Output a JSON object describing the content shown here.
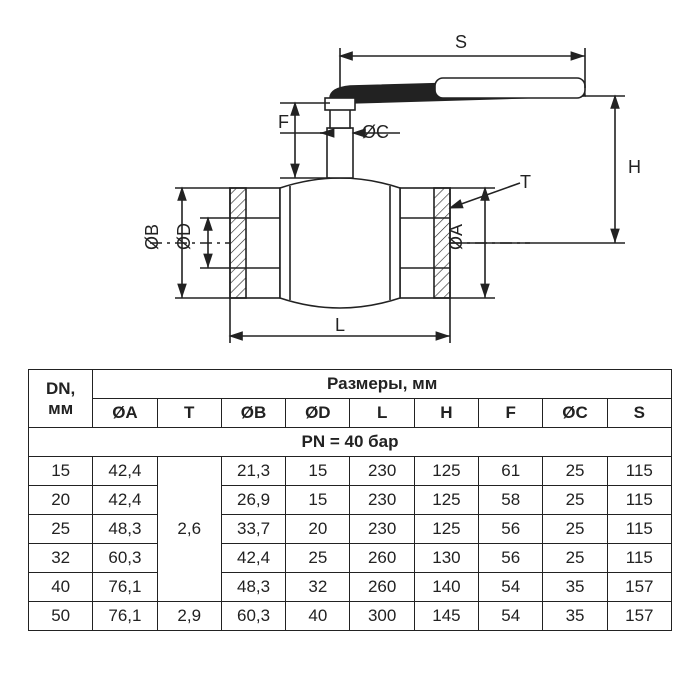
{
  "diagram": {
    "labels": {
      "S": "S",
      "H": "H",
      "F": "F",
      "diaC": "ØC",
      "diaA": "ØA",
      "diaB": "ØB",
      "diaD": "ØD",
      "T": "T",
      "L": "L"
    },
    "stroke": "#222",
    "stroke_width": 1.6,
    "hatch_stroke": "#222",
    "font_size": 18
  },
  "table": {
    "header_dn": "DN,",
    "header_dn2": "мм",
    "header_sizes": "Размеры, мм",
    "cols": [
      "ØA",
      "T",
      "ØB",
      "ØD",
      "L",
      "H",
      "F",
      "ØC",
      "S"
    ],
    "pn_row": "PN = 40 бар",
    "rows": [
      {
        "dn": "15",
        "A": "42,4",
        "T": "",
        "B": "21,3",
        "D": "15",
        "L": "230",
        "H": "125",
        "F": "61",
        "C": "25",
        "S": "115"
      },
      {
        "dn": "20",
        "A": "42,4",
        "T": "",
        "B": "26,9",
        "D": "15",
        "L": "230",
        "H": "125",
        "F": "58",
        "C": "25",
        "S": "115"
      },
      {
        "dn": "25",
        "A": "48,3",
        "T": "2,6",
        "B": "33,7",
        "D": "20",
        "L": "230",
        "H": "125",
        "F": "56",
        "C": "25",
        "S": "115"
      },
      {
        "dn": "32",
        "A": "60,3",
        "T": "",
        "B": "42,4",
        "D": "25",
        "L": "260",
        "H": "130",
        "F": "56",
        "C": "25",
        "S": "115"
      },
      {
        "dn": "40",
        "A": "76,1",
        "T": "",
        "B": "48,3",
        "D": "32",
        "L": "260",
        "H": "140",
        "F": "54",
        "C": "35",
        "S": "157"
      },
      {
        "dn": "50",
        "A": "76,1",
        "T": "2,9",
        "B": "60,3",
        "D": "40",
        "L": "300",
        "H": "145",
        "F": "54",
        "C": "35",
        "S": "157"
      }
    ],
    "t_merge": [
      {
        "start": 0,
        "span": 5,
        "value": "2,6"
      },
      {
        "start": 5,
        "span": 1,
        "value": "2,9"
      }
    ],
    "border_color": "#222",
    "font_size": 17
  }
}
